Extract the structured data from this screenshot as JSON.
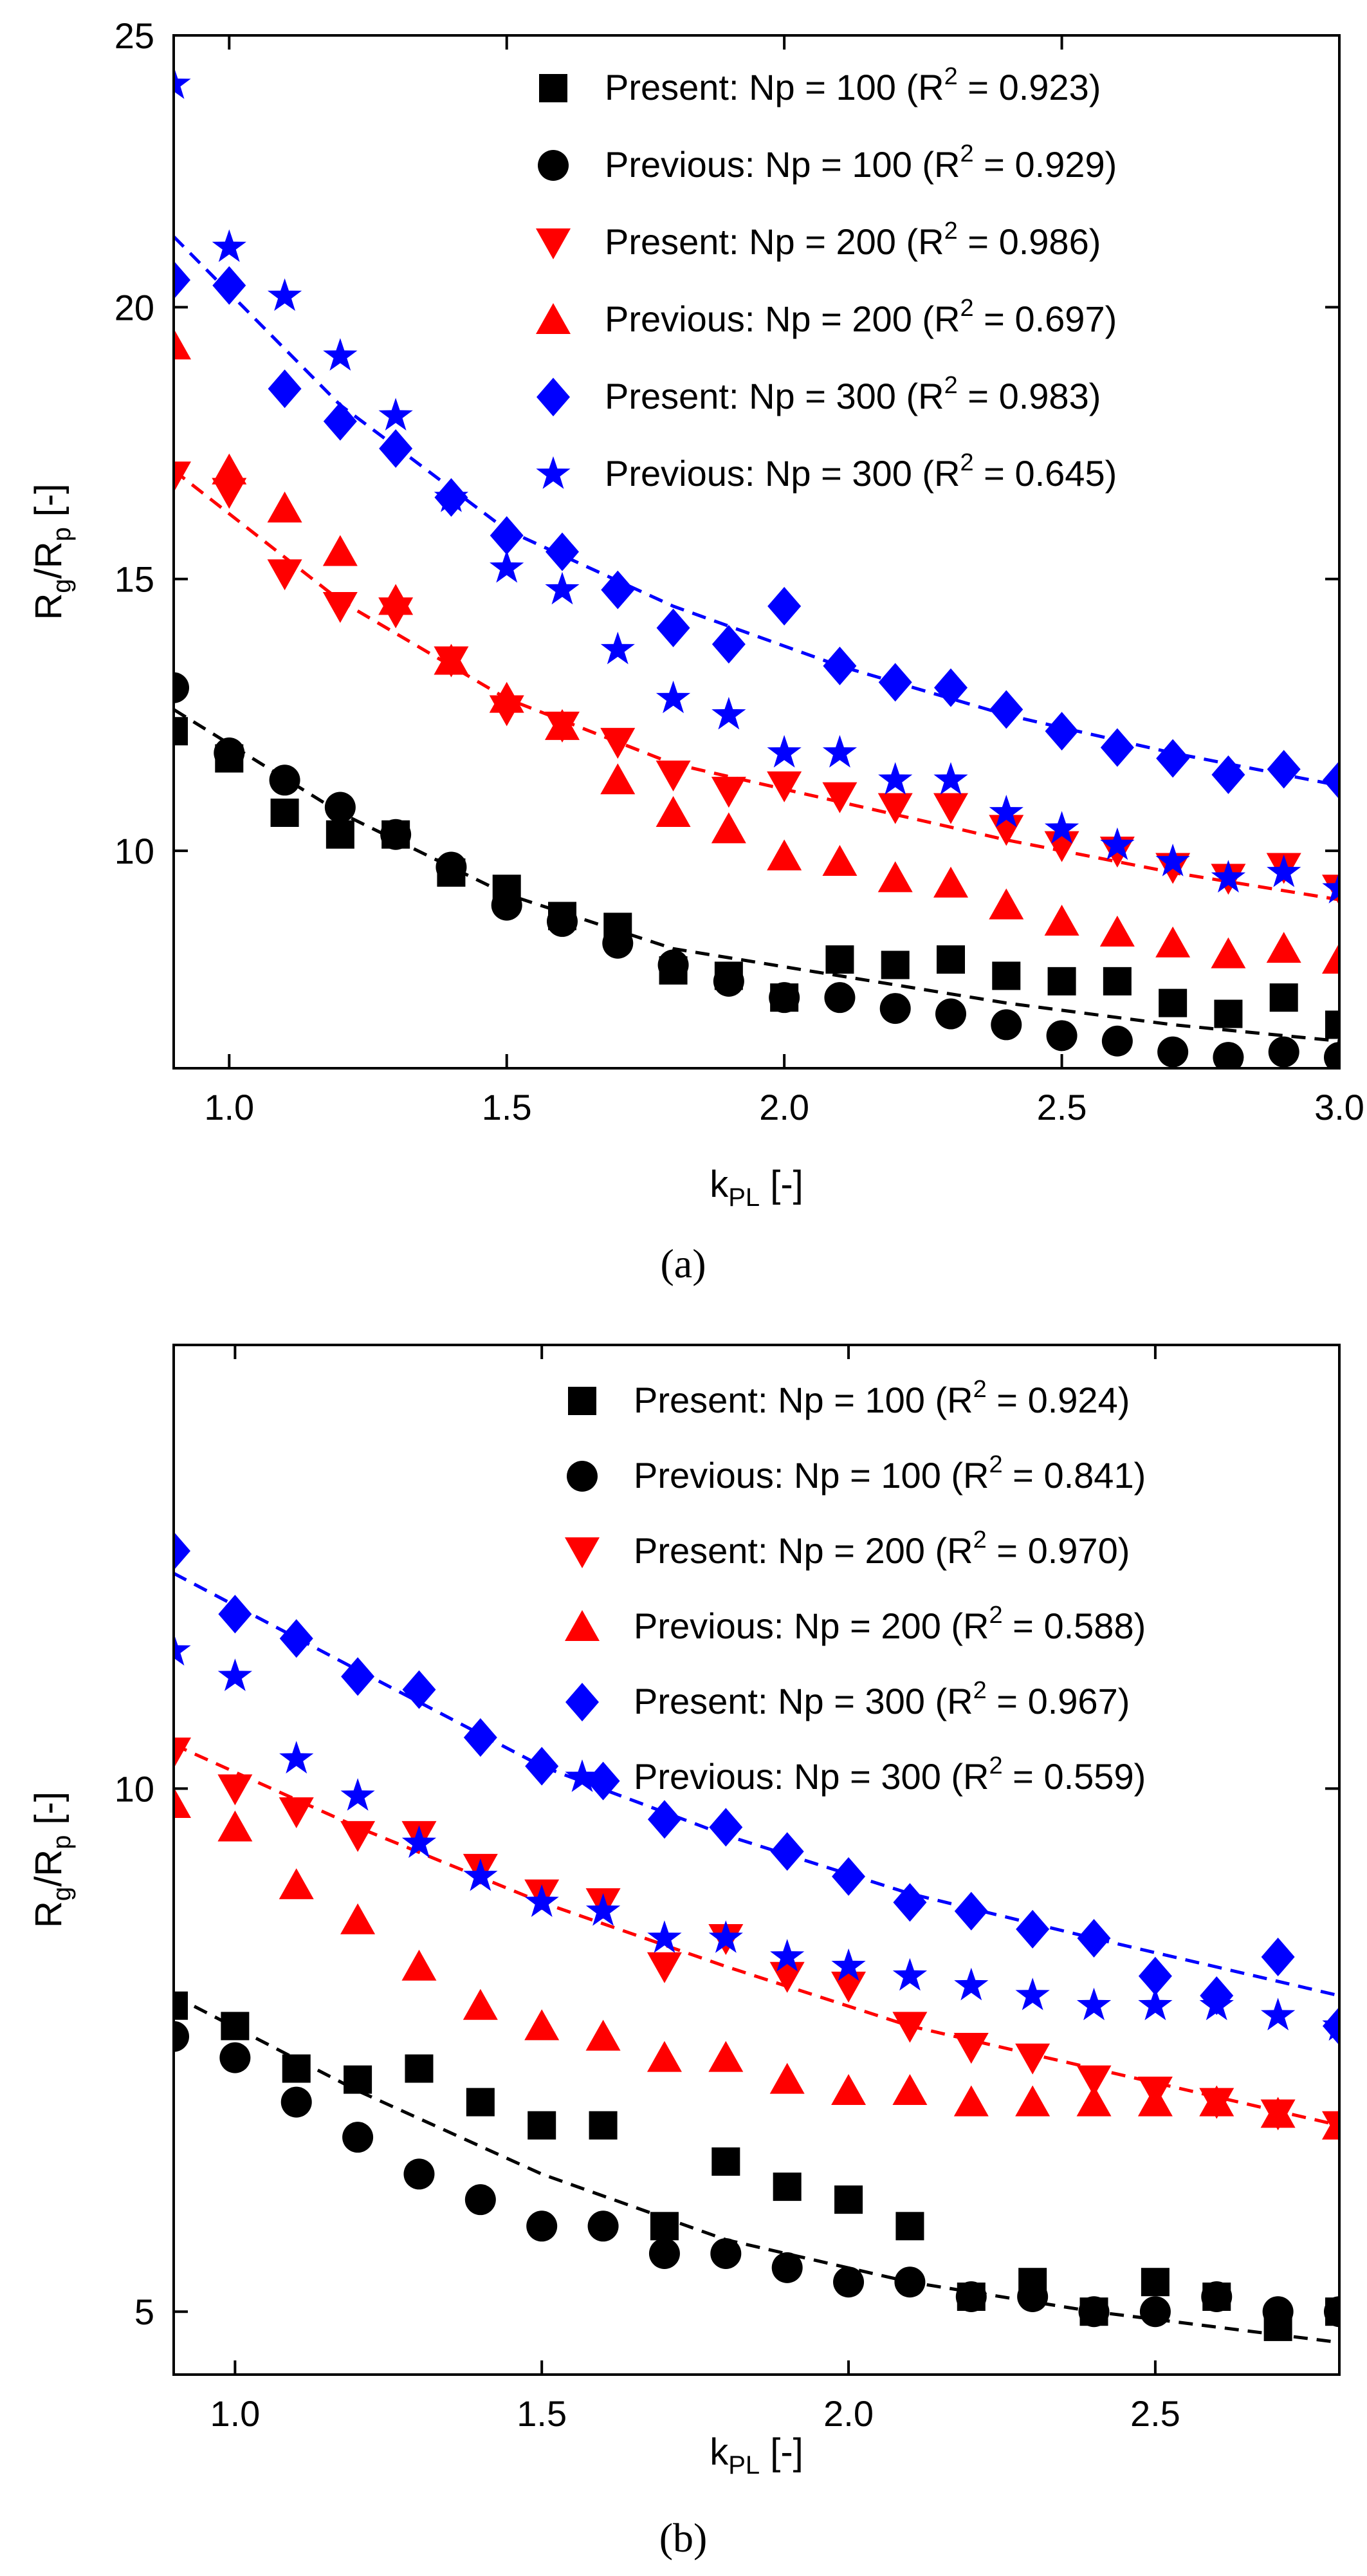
{
  "chart_data": [
    {
      "type": "scatter",
      "panel_label": "(a)",
      "xlabel": "k",
      "xlabel_sub": "PL",
      "xlabel_unit": " [-]",
      "ylabel": "R",
      "ylabel_sub1": "g",
      "ylabel_mid": "/R",
      "ylabel_sub2": "p",
      "ylabel_unit": " [-]",
      "xlim": [
        0.9,
        3.0
      ],
      "ylim": [
        6.0,
        25.0
      ],
      "yscale": "linear",
      "xticks": [
        "1.0",
        "1.5",
        "2.0",
        "2.5",
        "3.0"
      ],
      "yticks": [
        "10",
        "15",
        "20",
        "25"
      ],
      "grid": false,
      "legend_position": "top-right",
      "series": [
        {
          "name_prefix": "Present: Np = 100 (R",
          "name_suffix": " = 0.923)",
          "marker": "square",
          "color": "#000000",
          "x": [
            0.9,
            1.0,
            1.1,
            1.2,
            1.3,
            1.4,
            1.5,
            1.6,
            1.7,
            1.8,
            1.9,
            2.0,
            2.1,
            2.2,
            2.3,
            2.4,
            2.5,
            2.6,
            2.7,
            2.8,
            2.9,
            3.0
          ],
          "y": [
            12.2,
            11.7,
            10.7,
            10.3,
            10.3,
            9.6,
            9.3,
            8.8,
            8.6,
            7.8,
            7.7,
            7.3,
            8.0,
            7.9,
            8.0,
            7.7,
            7.6,
            7.6,
            7.2,
            7.0,
            7.3,
            6.8
          ]
        },
        {
          "name_prefix": "Previous: Np = 100 (R",
          "name_suffix": " = 0.929)",
          "marker": "circle",
          "color": "#000000",
          "x": [
            0.9,
            1.0,
            1.1,
            1.2,
            1.3,
            1.4,
            1.5,
            1.6,
            1.7,
            1.8,
            1.9,
            2.0,
            2.1,
            2.2,
            2.3,
            2.4,
            2.5,
            2.6,
            2.7,
            2.8,
            2.9,
            3.0
          ],
          "y": [
            13.0,
            11.8,
            11.3,
            10.8,
            10.3,
            9.7,
            9.0,
            8.7,
            8.3,
            7.9,
            7.6,
            7.3,
            7.3,
            7.1,
            7.0,
            6.8,
            6.6,
            6.5,
            6.3,
            6.2,
            6.3,
            6.2
          ]
        },
        {
          "name_prefix": "Present: Np = 200 (R",
          "name_suffix": " = 0.986)",
          "marker": "triangle-down",
          "color": "#ff0000",
          "x": [
            0.9,
            1.0,
            1.1,
            1.2,
            1.3,
            1.4,
            1.5,
            1.6,
            1.7,
            1.8,
            1.9,
            2.0,
            2.1,
            2.2,
            2.3,
            2.4,
            2.5,
            2.6,
            2.7,
            2.8,
            2.9,
            3.0
          ],
          "y": [
            16.9,
            16.6,
            15.1,
            14.5,
            14.4,
            13.5,
            12.6,
            12.3,
            12.0,
            11.4,
            11.1,
            11.2,
            11.0,
            10.8,
            10.8,
            10.4,
            10.1,
            10.0,
            9.7,
            9.5,
            9.7,
            9.3
          ]
        },
        {
          "name_prefix": "Previous: Np = 200 (R",
          "name_suffix": " = 0.697)",
          "marker": "triangle-up",
          "color": "#ff0000",
          "x": [
            0.9,
            1.0,
            1.1,
            1.2,
            1.3,
            1.4,
            1.5,
            1.6,
            1.7,
            1.8,
            1.9,
            2.0,
            2.1,
            2.2,
            2.3,
            2.4,
            2.5,
            2.6,
            2.7,
            2.8,
            2.9,
            3.0
          ],
          "y": [
            19.3,
            17.0,
            16.3,
            15.5,
            14.6,
            13.5,
            12.8,
            12.3,
            11.3,
            10.7,
            10.4,
            9.9,
            9.8,
            9.5,
            9.4,
            9.0,
            8.7,
            8.5,
            8.3,
            8.1,
            8.2,
            8.0
          ]
        },
        {
          "name_prefix": "Present: Np = 300 (R",
          "name_suffix": " = 0.983)",
          "marker": "diamond",
          "color": "#0000ff",
          "x": [
            0.9,
            1.0,
            1.1,
            1.2,
            1.3,
            1.4,
            1.5,
            1.6,
            1.7,
            1.8,
            1.9,
            2.0,
            2.1,
            2.2,
            2.3,
            2.4,
            2.5,
            2.6,
            2.7,
            2.8,
            2.9,
            3.0
          ],
          "y": [
            20.5,
            20.4,
            18.5,
            17.9,
            17.4,
            16.5,
            15.8,
            15.5,
            14.8,
            14.1,
            13.8,
            14.5,
            13.4,
            13.1,
            13.0,
            12.6,
            12.2,
            11.9,
            11.7,
            11.4,
            11.5,
            11.3
          ]
        },
        {
          "name_prefix": "Previous: Np =  300 (R",
          "name_suffix": " = 0.645)",
          "marker": "star",
          "color": "#0000ff",
          "x": [
            0.9,
            1.0,
            1.1,
            1.2,
            1.3,
            1.4,
            1.5,
            1.6,
            1.7,
            1.8,
            1.9,
            2.0,
            2.1,
            2.2,
            2.3,
            2.4,
            2.5,
            2.6,
            2.7,
            2.8,
            2.9,
            3.0
          ],
          "y": [
            24.1,
            21.1,
            20.2,
            19.1,
            18.0,
            16.5,
            15.2,
            14.8,
            13.7,
            12.8,
            12.5,
            11.8,
            11.8,
            11.3,
            11.3,
            10.7,
            10.4,
            10.1,
            9.8,
            9.5,
            9.6,
            9.3
          ]
        }
      ],
      "fit_lines": [
        {
          "color": "#000000",
          "x": [
            0.9,
            1.2,
            1.5,
            1.8,
            2.1,
            2.4,
            2.7,
            3.0
          ],
          "y": [
            12.6,
            10.7,
            9.2,
            8.2,
            7.7,
            7.2,
            6.8,
            6.5
          ]
        },
        {
          "color": "#ff0000",
          "x": [
            0.9,
            1.2,
            1.5,
            1.8,
            2.1,
            2.4,
            2.7,
            3.0
          ],
          "y": [
            17.0,
            14.6,
            12.8,
            11.6,
            10.9,
            10.2,
            9.6,
            9.1
          ]
        },
        {
          "color": "#0000ff",
          "x": [
            0.9,
            1.2,
            1.5,
            1.8,
            2.1,
            2.4,
            2.7,
            3.0
          ],
          "y": [
            21.3,
            18.2,
            15.9,
            14.5,
            13.4,
            12.5,
            11.8,
            11.2
          ]
        }
      ]
    },
    {
      "type": "scatter",
      "panel_label": "(b)",
      "xlabel": "k",
      "xlabel_sub": "PL",
      "xlabel_unit": " [-]",
      "ylabel": "R",
      "ylabel_sub1": "g",
      "ylabel_mid": "/R",
      "ylabel_sub2": "p",
      "ylabel_unit": " [-]",
      "xlim": [
        0.9,
        2.8
      ],
      "ylim": [
        4.6,
        18.0
      ],
      "yscale": "log",
      "xticks": [
        "1.0",
        "1.5",
        "2.0",
        "2.5"
      ],
      "yticks": [
        "5",
        "10"
      ],
      "grid": false,
      "legend_position": "top-right",
      "series": [
        {
          "name_prefix": "Present: Np = 100 (R",
          "name_suffix": " = 0.924)",
          "marker": "square",
          "color": "#000000",
          "x": [
            0.9,
            1.0,
            1.1,
            1.2,
            1.3,
            1.4,
            1.5,
            1.6,
            1.7,
            1.8,
            1.9,
            2.0,
            2.1,
            2.2,
            2.3,
            2.4,
            2.5,
            2.6,
            2.7,
            2.8
          ],
          "y": [
            7.5,
            7.3,
            6.9,
            6.8,
            6.9,
            6.6,
            6.4,
            6.4,
            5.6,
            6.1,
            5.9,
            5.8,
            5.6,
            5.1,
            5.2,
            5.0,
            5.2,
            5.1,
            4.9,
            5.0
          ]
        },
        {
          "name_prefix": "Previous: Np = 100 (R",
          "name_suffix": " = 0.841)",
          "marker": "circle",
          "color": "#000000",
          "x": [
            0.9,
            1.0,
            1.1,
            1.2,
            1.3,
            1.4,
            1.5,
            1.6,
            1.7,
            1.8,
            1.9,
            2.0,
            2.1,
            2.2,
            2.3,
            2.4,
            2.5,
            2.6,
            2.7,
            2.8
          ],
          "y": [
            7.2,
            7.0,
            6.6,
            6.3,
            6.0,
            5.8,
            5.6,
            5.6,
            5.4,
            5.4,
            5.3,
            5.2,
            5.2,
            5.1,
            5.1,
            5.0,
            5.0,
            5.1,
            5.0,
            5.0
          ]
        },
        {
          "name_prefix": "Present: Np = 200 (R",
          "name_suffix": " = 0.970)",
          "marker": "triangle-down",
          "color": "#ff0000",
          "x": [
            0.9,
            1.0,
            1.1,
            1.2,
            1.3,
            1.4,
            1.5,
            1.6,
            1.7,
            1.8,
            1.9,
            2.0,
            2.1,
            2.2,
            2.3,
            2.4,
            2.5,
            2.6,
            2.7,
            2.8
          ],
          "y": [
            10.5,
            10.0,
            9.7,
            9.4,
            9.4,
            9.0,
            8.7,
            8.6,
            7.9,
            8.2,
            7.8,
            7.7,
            7.3,
            7.1,
            7.0,
            6.8,
            6.7,
            6.6,
            6.5,
            6.4
          ]
        },
        {
          "name_prefix": "Previous: Np = 200 (R",
          "name_suffix": " = 0.588)",
          "marker": "triangle-up",
          "color": "#ff0000",
          "x": [
            0.9,
            1.0,
            1.1,
            1.2,
            1.3,
            1.4,
            1.5,
            1.6,
            1.7,
            1.8,
            1.9,
            2.0,
            2.1,
            2.2,
            2.3,
            2.4,
            2.5,
            2.6,
            2.7,
            2.8
          ],
          "y": [
            9.8,
            9.5,
            8.8,
            8.4,
            7.9,
            7.5,
            7.3,
            7.2,
            7.0,
            7.0,
            6.8,
            6.7,
            6.7,
            6.6,
            6.6,
            6.6,
            6.6,
            6.6,
            6.5,
            6.4
          ]
        },
        {
          "name_prefix": "Present: Np = 300 (R",
          "name_suffix": " = 0.967)",
          "marker": "diamond",
          "color": "#0000ff",
          "x": [
            0.9,
            1.0,
            1.1,
            1.2,
            1.3,
            1.4,
            1.5,
            1.6,
            1.7,
            1.8,
            1.9,
            2.0,
            2.1,
            2.2,
            2.3,
            2.4,
            2.5,
            2.6,
            2.7,
            2.8
          ],
          "y": [
            13.7,
            12.6,
            12.2,
            11.6,
            11.4,
            10.7,
            10.3,
            10.1,
            9.6,
            9.5,
            9.2,
            8.9,
            8.6,
            8.5,
            8.3,
            8.2,
            7.8,
            7.6,
            8.0,
            7.3
          ]
        },
        {
          "name_prefix": "Previous: Np =  300 (R",
          "name_suffix": " = 0.559)",
          "marker": "star",
          "color": "#0000ff",
          "x": [
            0.9,
            1.0,
            1.1,
            1.2,
            1.3,
            1.4,
            1.5,
            1.6,
            1.7,
            1.8,
            1.9,
            2.0,
            2.1,
            2.2,
            2.3,
            2.4,
            2.5,
            2.6,
            2.7,
            2.8
          ],
          "y": [
            12.0,
            11.6,
            10.4,
            9.9,
            9.3,
            8.9,
            8.6,
            8.5,
            8.2,
            8.2,
            8.0,
            7.9,
            7.8,
            7.7,
            7.6,
            7.5,
            7.5,
            7.5,
            7.4,
            7.3
          ]
        }
      ],
      "fit_lines": [
        {
          "color": "#000000",
          "x": [
            0.9,
            1.2,
            1.5,
            1.8,
            2.1,
            2.4,
            2.8
          ],
          "y": [
            7.6,
            6.7,
            6.0,
            5.5,
            5.2,
            5.0,
            4.8
          ]
        },
        {
          "color": "#ff0000",
          "x": [
            0.9,
            1.2,
            1.5,
            1.8,
            2.1,
            2.4,
            2.8
          ],
          "y": [
            10.6,
            9.5,
            8.6,
            7.9,
            7.3,
            6.9,
            6.4
          ]
        },
        {
          "color": "#0000ff",
          "x": [
            0.9,
            1.2,
            1.5,
            1.8,
            2.1,
            2.4,
            2.8
          ],
          "y": [
            13.3,
            11.7,
            10.3,
            9.4,
            8.7,
            8.2,
            7.6
          ]
        }
      ]
    }
  ]
}
